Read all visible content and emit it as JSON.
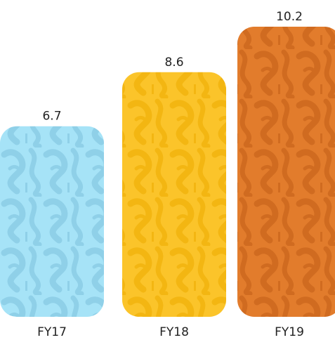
{
  "chart_data": {
    "type": "bar",
    "categories": [
      "FY17",
      "FY18",
      "FY19"
    ],
    "values": [
      6.7,
      8.6,
      10.2
    ],
    "value_labels": [
      "6.7",
      "8.6",
      "10.2"
    ],
    "title": "",
    "xlabel": "",
    "ylabel": "",
    "ylim": [
      0,
      10.2
    ],
    "grid": false,
    "legend": "none",
    "colors": [
      "#a6e3f7",
      "#fbc42a",
      "#e27c2c"
    ],
    "pattern_colors": [
      "#8fd0e8",
      "#f3b612",
      "#d06b20"
    ],
    "bar_style": "rounded, filled with a faint graffiti-lettering texture"
  }
}
